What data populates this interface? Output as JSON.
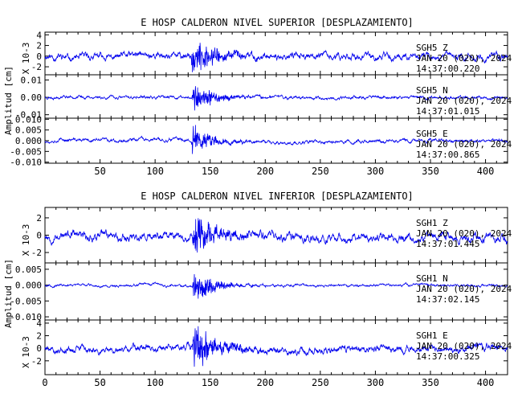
{
  "chart_data": [
    {
      "type": "line",
      "title": "E HOSP CALDERON NIVEL SUPERIOR [DESPLAZAMIENTO]",
      "ylabel": "Amplitud [cm]",
      "xlim": [
        0,
        420
      ],
      "x_ticks": [
        50,
        100,
        150,
        200,
        250,
        300,
        350,
        400
      ],
      "series_color": "#0000ee",
      "grid": false,
      "panels": [
        {
          "station": "SGH5",
          "component": "Z",
          "date": "JAN 20 (020), 2024",
          "time": "14:37:00.220",
          "ylim": [
            -3.5,
            4.5
          ],
          "y_ticks": [
            -2,
            0,
            2,
            4
          ],
          "y_tick_labels": [
            "-2",
            "0",
            "2",
            "4"
          ],
          "side_label": "X 10-3",
          "trace": {
            "noise": 0.55,
            "event_peak": 4.2,
            "event_start": 133,
            "event_decay": 22,
            "seed": 11
          }
        },
        {
          "station": "SGH5",
          "component": "N",
          "date": "JAN 20 (020), 2024",
          "time": "14:37:01.015",
          "ylim": [
            -0.012,
            0.013
          ],
          "y_ticks": [
            -0.01,
            0.0,
            0.01
          ],
          "y_tick_labels": [
            "-0.01",
            "0.00",
            "0.01"
          ],
          "side_label": "",
          "trace": {
            "noise": 0.0008,
            "event_peak": 0.012,
            "event_start": 133,
            "event_decay": 18,
            "seed": 23
          }
        },
        {
          "station": "SGH5",
          "component": "E",
          "date": "JAN 20 (020), 2024",
          "time": "14:37:00.865",
          "ylim": [
            -0.0105,
            0.0105
          ],
          "y_ticks": [
            -0.01,
            -0.005,
            0.0,
            0.005,
            0.01
          ],
          "y_tick_labels": [
            "-0.010",
            "-0.005",
            "0.000",
            "0.005",
            "0.010"
          ],
          "side_label": "",
          "trace": {
            "noise": 0.0007,
            "event_peak": 0.0095,
            "event_start": 133,
            "event_decay": 16,
            "seed": 37
          }
        }
      ]
    },
    {
      "type": "line",
      "title": "E HOSP CALDERON NIVEL INFERIOR [DESPLAZAMIENTO]",
      "ylabel": "Amplitud [cm]",
      "xlim": [
        0,
        420
      ],
      "x_ticks": [
        0,
        50,
        100,
        150,
        200,
        250,
        300,
        350,
        400
      ],
      "series_color": "#0000ee",
      "grid": false,
      "panels": [
        {
          "station": "SGH1",
          "component": "Z",
          "date": "JAN 20 (020), 2024",
          "time": "14:37:01.445",
          "ylim": [
            -3.2,
            3.2
          ],
          "y_ticks": [
            -2,
            0,
            2
          ],
          "y_tick_labels": [
            "-2",
            "0",
            "2"
          ],
          "side_label": "X 10-3",
          "trace": {
            "noise": 0.45,
            "event_peak": 3.0,
            "event_start": 134,
            "event_decay": 20,
            "seed": 53
          }
        },
        {
          "station": "SGH1",
          "component": "N",
          "date": "JAN 20 (020), 2024",
          "time": "14:37:02.145",
          "ylim": [
            -0.011,
            0.007
          ],
          "y_ticks": [
            -0.01,
            -0.005,
            0.0,
            0.005
          ],
          "y_tick_labels": [
            "-0.010",
            "-0.005",
            "0.000",
            "0.005"
          ],
          "side_label": "",
          "trace": {
            "noise": 0.00035,
            "event_peak": 0.0065,
            "event_start": 134,
            "event_decay": 18,
            "seed": 67
          }
        },
        {
          "station": "SGH1",
          "component": "E",
          "date": "JAN 20 (020), 2024",
          "time": "14:37:00.325",
          "ylim": [
            -4.2,
            4.5
          ],
          "y_ticks": [
            -2,
            0,
            2,
            4
          ],
          "y_tick_labels": [
            "-2",
            "0",
            "2",
            "4"
          ],
          "side_label": "X 10-3",
          "trace": {
            "noise": 0.5,
            "event_peak": 4.2,
            "event_start": 134,
            "event_decay": 24,
            "seed": 79
          }
        }
      ]
    }
  ]
}
